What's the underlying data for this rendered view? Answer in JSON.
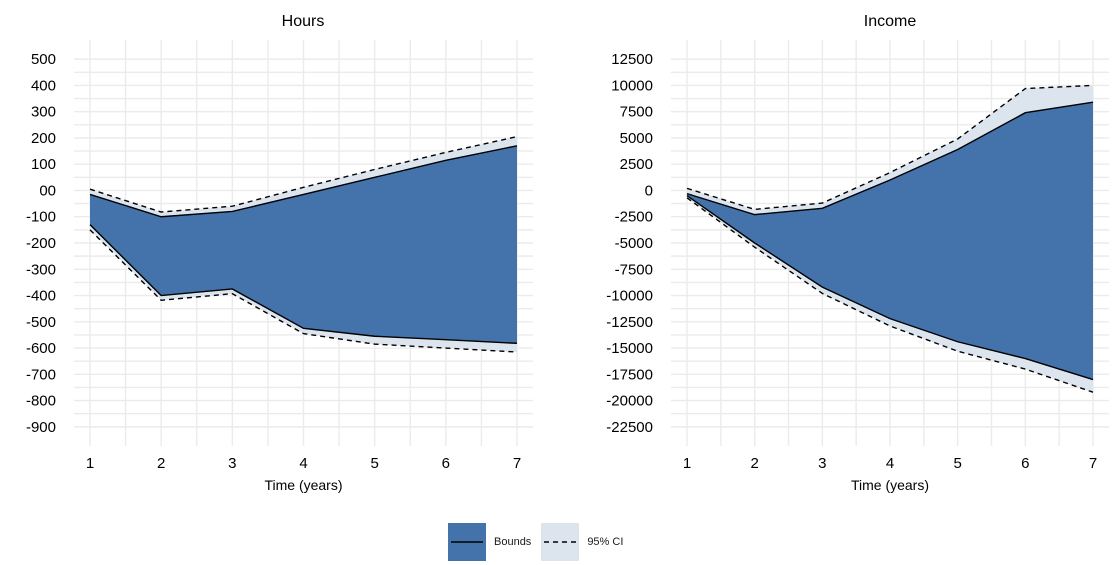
{
  "chart_data": [
    {
      "type": "area",
      "title": "Hours",
      "xlabel": "Time (years)",
      "ylabel": "",
      "x": [
        1,
        2,
        3,
        4,
        5,
        6,
        7
      ],
      "xlim": [
        1,
        7
      ],
      "ylim": [
        -950,
        550
      ],
      "x_ticks": [
        "1",
        "2",
        "3",
        "4",
        "5",
        "6",
        "7"
      ],
      "y_ticks": [
        "500",
        "400",
        "300",
        "200",
        "100",
        "00",
        "-100",
        "-200",
        "-300",
        "-400",
        "-500",
        "-600",
        "-700",
        "-800",
        "-900"
      ],
      "y_tick_values": [
        500,
        400,
        300,
        200,
        100,
        0,
        -100,
        -200,
        -300,
        -400,
        -500,
        -600,
        -700,
        -800,
        -900
      ],
      "grid": true,
      "series": [
        {
          "name": "Bounds",
          "lower": [
            -130,
            -400,
            -375,
            -525,
            -555,
            -568,
            -582
          ],
          "upper": [
            -15,
            -100,
            -80,
            -15,
            50,
            115,
            170
          ]
        },
        {
          "name": "95% CI",
          "lower": [
            -150,
            -418,
            -393,
            -545,
            -585,
            -600,
            -615
          ],
          "upper": [
            5,
            -82,
            -60,
            12,
            80,
            145,
            205
          ]
        }
      ]
    },
    {
      "type": "area",
      "title": "Income",
      "xlabel": "Time (years)",
      "ylabel": "",
      "x": [
        1,
        2,
        3,
        4,
        5,
        6,
        7
      ],
      "xlim": [
        1,
        7
      ],
      "ylim": [
        -23750,
        13750
      ],
      "x_ticks": [
        "1",
        "2",
        "3",
        "4",
        "5",
        "6",
        "7"
      ],
      "y_ticks": [
        "12500",
        "10000",
        "7500",
        "5000",
        "2500",
        "0",
        "-2500",
        "-5000",
        "-7500",
        "-10000",
        "-12500",
        "-15000",
        "-17500",
        "-20000",
        "-22500"
      ],
      "y_tick_values": [
        12500,
        10000,
        7500,
        5000,
        2500,
        0,
        -2500,
        -5000,
        -7500,
        -10000,
        -12500,
        -15000,
        -17500,
        -20000,
        -22500
      ],
      "grid": true,
      "series": [
        {
          "name": "Bounds",
          "lower": [
            -500,
            -5000,
            -9200,
            -12200,
            -14400,
            -16000,
            -18000
          ],
          "upper": [
            -300,
            -2300,
            -1700,
            1000,
            3900,
            7400,
            8400
          ]
        },
        {
          "name": "95% CI",
          "lower": [
            -700,
            -5400,
            -9800,
            -12900,
            -15300,
            -17000,
            -19200
          ],
          "upper": [
            200,
            -1800,
            -1200,
            1700,
            4900,
            9700,
            10000
          ]
        }
      ]
    }
  ],
  "legend": {
    "position": "bottom",
    "items": [
      {
        "label": "Bounds",
        "fill": "#4472aa",
        "line": "solid"
      },
      {
        "label": "95% CI",
        "fill": "#dce4ee",
        "line": "dashed"
      }
    ]
  },
  "colors": {
    "bounds_fill": "#4472aa",
    "ci_fill": "#dce4ee",
    "line": "#000000",
    "grid": "#ebebeb"
  }
}
